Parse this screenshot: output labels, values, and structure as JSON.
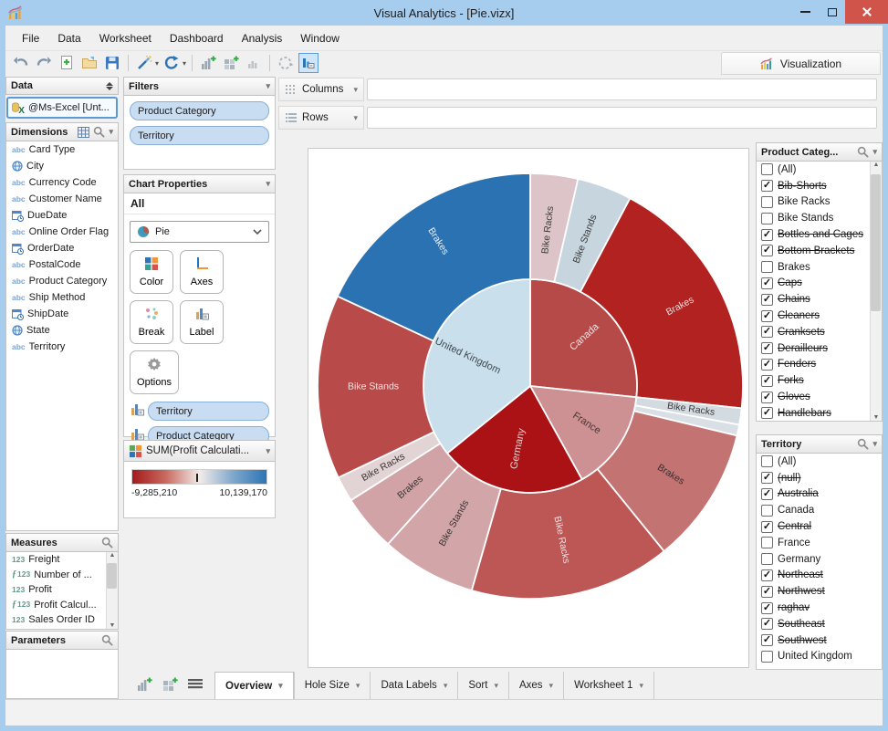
{
  "window": {
    "title": "Visual Analytics - [Pie.vizx]"
  },
  "menu": [
    "File",
    "Data",
    "Worksheet",
    "Dashboard",
    "Analysis",
    "Window"
  ],
  "toolbar": {
    "visualization": "Visualization"
  },
  "icons": {
    "chevron_down": "▾",
    "scroll_up": "▲",
    "scroll_down": "▼",
    "check": "✓",
    "abc": "abc",
    "numeric": "123",
    "function": "ƒ123"
  },
  "data_panel": {
    "header": "Data",
    "source": "@Ms-Excel [Unt...",
    "dimensions": {
      "header": "Dimensions",
      "items": [
        {
          "icon": "abc",
          "label": "Card Type"
        },
        {
          "icon": "globe",
          "label": "City"
        },
        {
          "icon": "abc",
          "label": "Currency Code"
        },
        {
          "icon": "abc",
          "label": "Customer Name"
        },
        {
          "icon": "calendar",
          "label": "DueDate"
        },
        {
          "icon": "abc",
          "label": "Online Order Flag"
        },
        {
          "icon": "calendar",
          "label": "OrderDate"
        },
        {
          "icon": "abc",
          "label": "PostalCode"
        },
        {
          "icon": "abc",
          "label": "Product Category"
        },
        {
          "icon": "abc",
          "label": "Ship Method"
        },
        {
          "icon": "calendar",
          "label": "ShipDate"
        },
        {
          "icon": "globe",
          "label": "State"
        },
        {
          "icon": "abc",
          "label": "Territory"
        }
      ]
    },
    "measures": {
      "header": "Measures",
      "items": [
        {
          "icon": "123",
          "label": "Freight"
        },
        {
          "icon": "fx123",
          "label": "Number of ..."
        },
        {
          "icon": "123",
          "label": "Profit"
        },
        {
          "icon": "fx123",
          "label": "Profit Calcul..."
        },
        {
          "icon": "123",
          "label": "Sales Order ID"
        }
      ]
    },
    "parameters": {
      "header": "Parameters"
    }
  },
  "filters_panel": {
    "header": "Filters",
    "pills": [
      "Product Category",
      "Territory"
    ]
  },
  "chart_properties": {
    "header": "Chart Properties",
    "scope": "All",
    "chart_type": "Pie",
    "buttons": [
      "Color",
      "Axes",
      "Break",
      "Label",
      "Options"
    ],
    "pills": [
      {
        "icon": "bar-label",
        "label": "Territory",
        "style": "blue"
      },
      {
        "icon": "bar-label",
        "label": "Product Category",
        "style": "blue"
      },
      {
        "icon": "color-squares",
        "label": "SUM(Profit Calculatio...",
        "style": "green"
      }
    ]
  },
  "legend": {
    "header": "SUM(Profit Calculati...",
    "min_label": "-9,285,210",
    "max_label": "10,139,170",
    "gradient": [
      "#a31a1d",
      "#c96a5f",
      "#f2ece9",
      "#7fa8cc",
      "#2e74b4"
    ],
    "tick_pos": 0.478
  },
  "shelves": {
    "columns": "Columns",
    "rows": "Rows"
  },
  "product_filter": {
    "header": "Product Categ...",
    "items": [
      {
        "label": "(All)",
        "checked": false,
        "struck": false
      },
      {
        "label": "Bib-Shorts",
        "checked": true,
        "struck": true
      },
      {
        "label": "Bike Racks",
        "checked": false,
        "struck": false
      },
      {
        "label": "Bike Stands",
        "checked": false,
        "struck": false
      },
      {
        "label": "Bottles and Cages",
        "checked": true,
        "struck": true
      },
      {
        "label": "Bottom Brackets",
        "checked": true,
        "struck": true
      },
      {
        "label": "Brakes",
        "checked": false,
        "struck": false
      },
      {
        "label": "Caps",
        "checked": true,
        "struck": true
      },
      {
        "label": "Chains",
        "checked": true,
        "struck": true
      },
      {
        "label": "Cleaners",
        "checked": true,
        "struck": true
      },
      {
        "label": "Cranksets",
        "checked": true,
        "struck": true
      },
      {
        "label": "Derailleurs",
        "checked": true,
        "struck": true
      },
      {
        "label": "Fenders",
        "checked": true,
        "struck": true
      },
      {
        "label": "Forks",
        "checked": true,
        "struck": true
      },
      {
        "label": "Gloves",
        "checked": true,
        "struck": true
      },
      {
        "label": "Handlebars",
        "checked": true,
        "struck": true
      }
    ]
  },
  "territory_filter": {
    "header": "Territory",
    "items": [
      {
        "label": "(All)",
        "checked": false,
        "struck": false
      },
      {
        "label": "(null)",
        "checked": true,
        "struck": true
      },
      {
        "label": "Australia",
        "checked": true,
        "struck": true
      },
      {
        "label": "Canada",
        "checked": false,
        "struck": false
      },
      {
        "label": "Central",
        "checked": true,
        "struck": true
      },
      {
        "label": "France",
        "checked": false,
        "struck": false
      },
      {
        "label": "Germany",
        "checked": false,
        "struck": false
      },
      {
        "label": "Northeast",
        "checked": true,
        "struck": true
      },
      {
        "label": "Northwest",
        "checked": true,
        "struck": true
      },
      {
        "label": "raghav",
        "checked": true,
        "struck": true
      },
      {
        "label": "Southeast",
        "checked": true,
        "struck": true
      },
      {
        "label": "Southwest",
        "checked": true,
        "struck": true
      },
      {
        "label": "United Kingdom",
        "checked": false,
        "struck": false
      }
    ]
  },
  "worksheet_tabs": [
    {
      "label": "Overview",
      "active": true
    },
    {
      "label": "Hole Size",
      "active": false
    },
    {
      "label": "Data Labels",
      "active": false
    },
    {
      "label": "Sort",
      "active": false
    },
    {
      "label": "Axes",
      "active": false
    },
    {
      "label": "Worksheet 1",
      "active": false
    }
  ],
  "chart_data": {
    "type": "pie",
    "subtype": "sunburst",
    "center": [
      243,
      260
    ],
    "legend_measure": {
      "name": "SUM(Profit Calculati...",
      "min": -9285210,
      "max": 10139170
    },
    "rings": [
      {
        "name": "Territory",
        "inner_radius": 0,
        "outer_radius": 117,
        "label_radius_default": 74,
        "label_size": 11,
        "segments": [
          {
            "label": "Canada",
            "start_deg": 0,
            "end_deg": 96,
            "color": "#b64a49",
            "label_color": "#f2e3e3",
            "label_radius": 80
          },
          {
            "label": "France",
            "start_deg": 96,
            "end_deg": 151,
            "color": "#ce9193",
            "label_color": "#463636",
            "label_radius": 74
          },
          {
            "label": "Germany",
            "start_deg": 151,
            "end_deg": 231,
            "color": "#ab1216",
            "label_color": "#e9d2d2",
            "label_radius": 70
          },
          {
            "label": "United Kingdom",
            "start_deg": 231,
            "end_deg": 360,
            "color": "#c9dfeb",
            "label_color": "#3e4950",
            "label_radius": 76
          }
        ]
      },
      {
        "name": "Product Category",
        "inner_radius": 117,
        "outer_radius": 233,
        "label_radius_default": 172,
        "label_size": 10.5,
        "segments": [
          {
            "label": "Bike Racks",
            "start_deg": 0,
            "end_deg": 13,
            "color": "#dcc4c9",
            "label_color": "#3a3a3a"
          },
          {
            "label": "Bike Stands",
            "start_deg": 13,
            "end_deg": 28,
            "color": "#c7d5df",
            "label_color": "#3a3a3a"
          },
          {
            "label": "Brakes",
            "start_deg": 28,
            "end_deg": 96,
            "color": "#b12220",
            "label_color": "#f0dcdc",
            "label_radius": 186
          },
          {
            "label": "Bike Racks",
            "start_deg": 96,
            "end_deg": 100.5,
            "color": "#d3dbe1",
            "label_color": "#3a3a3a",
            "label_radius": 178
          },
          {
            "label": "",
            "start_deg": 100.5,
            "end_deg": 103.5,
            "color": "#d9dfe4",
            "label_color": "#3a3a3a"
          },
          {
            "label": "Brakes",
            "start_deg": 103.5,
            "end_deg": 141,
            "color": "#c27372",
            "label_color": "#3b2e2e",
            "label_radius": 182
          },
          {
            "label": "Bike Racks",
            "start_deg": 141,
            "end_deg": 196,
            "color": "#bc5755",
            "label_color": "#f0e0e0"
          },
          {
            "label": "Bike Stands",
            "start_deg": 196,
            "end_deg": 222,
            "color": "#d2a6a9",
            "label_color": "#3a3333"
          },
          {
            "label": "Brakes",
            "start_deg": 222,
            "end_deg": 237.5,
            "color": "#d1a3a6",
            "label_color": "#3a3333"
          },
          {
            "label": "Bike Racks",
            "start_deg": 237.5,
            "end_deg": 244.5,
            "color": "#e2d3d5",
            "label_color": "#3a3333",
            "label_radius": 184
          },
          {
            "label": "Bike Stands",
            "start_deg": 244.5,
            "end_deg": 295,
            "color": "#b84b4a",
            "label_color": "#f0e0e0"
          },
          {
            "label": "Brakes",
            "start_deg": 295,
            "end_deg": 360,
            "color": "#2b72b2",
            "label_color": "#e8f0f8",
            "label_radius": 188
          }
        ]
      }
    ]
  }
}
